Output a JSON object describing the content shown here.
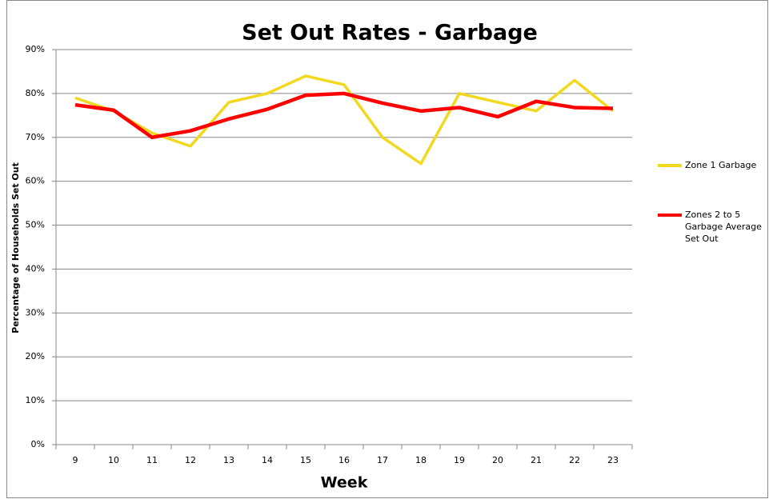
{
  "chart_data": {
    "type": "line",
    "title": "Set Out Rates - Garbage",
    "x_label": "Week",
    "y_label": "Percentage of Households Set Out",
    "categories": [
      "9",
      "10",
      "11",
      "12",
      "13",
      "14",
      "15",
      "16",
      "17",
      "18",
      "19",
      "20",
      "21",
      "22",
      "23"
    ],
    "series": [
      {
        "name": "Zone 1 Garbage",
        "color": "#f2d81e",
        "values": [
          79,
          76,
          71,
          68,
          78,
          80,
          84,
          82,
          70,
          64,
          80,
          78,
          76,
          83,
          76
        ]
      },
      {
        "name": "Zones 2 to 5 Garbage Average Set Out",
        "color": "#ff0000",
        "values": [
          77.4,
          76.2,
          70,
          71.5,
          74.2,
          76.4,
          79.6,
          80,
          77.8,
          76,
          76.8,
          74.7,
          78.2,
          76.8,
          76.6
        ]
      }
    ],
    "ylim": [
      0,
      90
    ],
    "yticks": [
      {
        "value": 0,
        "label": "0%"
      },
      {
        "value": 10,
        "label": "10%"
      },
      {
        "value": 20,
        "label": "20%"
      },
      {
        "value": 30,
        "label": "30%"
      },
      {
        "value": 40,
        "label": "40%"
      },
      {
        "value": 50,
        "label": "50%"
      },
      {
        "value": 60,
        "label": "60%"
      },
      {
        "value": 70,
        "label": "70%"
      },
      {
        "value": 80,
        "label": "80%"
      },
      {
        "value": 90,
        "label": "90%"
      }
    ],
    "grid": true,
    "legend": "right"
  }
}
